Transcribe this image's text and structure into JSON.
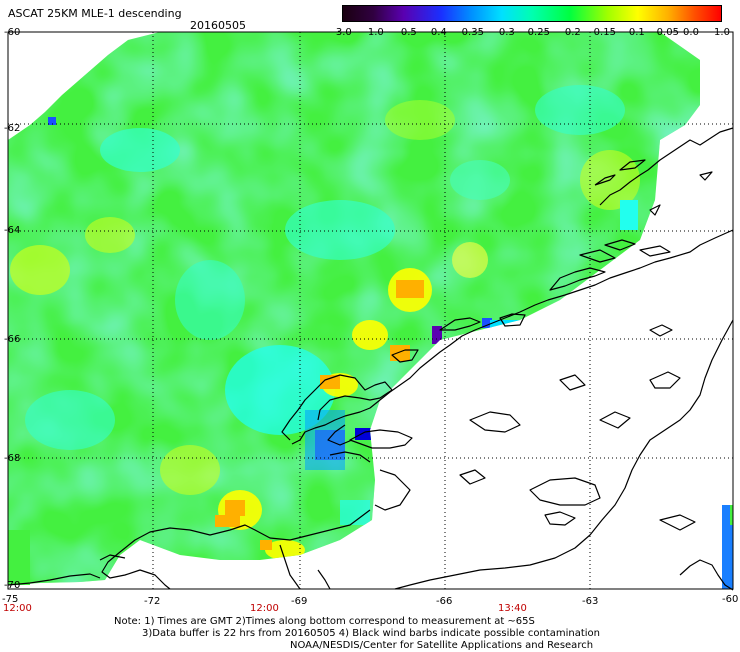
{
  "header": {
    "title": "ASCAT 25KM MLE-1 descending",
    "date": "20160505"
  },
  "colorbar": {
    "ticks": [
      "-3.0",
      "-1.0",
      "-0.5",
      "-0.4",
      "-0.35",
      "-0.3",
      "-0.25",
      "-0.2",
      "-0.15",
      "-0.1",
      "-0.05",
      "0.0",
      "1.0"
    ],
    "colors": [
      "#1a0010",
      "#5a00b0",
      "#1a30ff",
      "#0090ff",
      "#00e0ff",
      "#00ffb0",
      "#00ff40",
      "#a0ff00",
      "#ffff00",
      "#ffb000",
      "#ff5000",
      "#ff0000"
    ]
  },
  "axes": {
    "lat_labels": [
      "-60",
      "-62",
      "-64",
      "-66",
      "-68",
      "-70"
    ],
    "lon_labels": [
      "-75",
      "-72",
      "-69",
      "-66",
      "-63",
      "-60"
    ]
  },
  "times": [
    "12:00",
    "12:00",
    "13:40"
  ],
  "note": {
    "line1": "Note: 1) Times are GMT 2)Times along bottom correspond to measurement at ~65S",
    "line2": "3)Data buffer is 22 hrs from 20160505 4) Black wind barbs indicate possible contamination",
    "line3": "NOAA/NESDIS/Center for Satellite Applications and Research"
  }
}
